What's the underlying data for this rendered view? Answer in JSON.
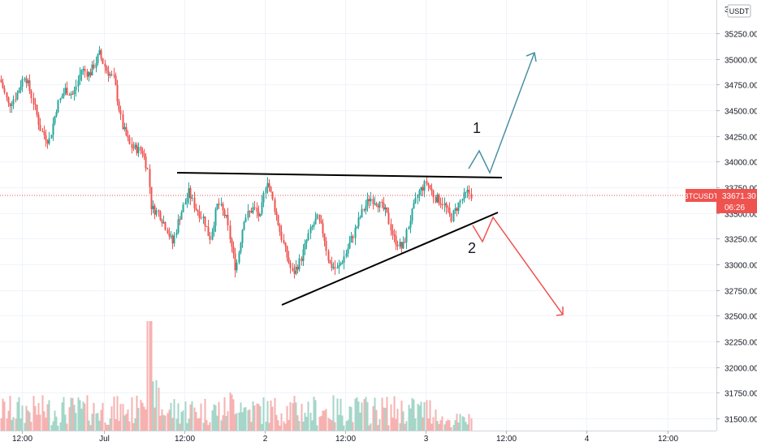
{
  "chart_data": {
    "type": "candlestick",
    "symbol": "BTCUSDT",
    "quote_currency": "USDT",
    "last_price": "33671.30",
    "countdown": "06:26",
    "y_axis": {
      "ticks": [
        31500,
        31750,
        32000,
        32250,
        32500,
        32750,
        33000,
        33250,
        33500,
        33750,
        34000,
        34250,
        34500,
        34750,
        35000,
        35250
      ],
      "tick_labels": [
        "31500.00",
        "31750.00",
        "32000.00",
        "32250.00",
        "32500.00",
        "32750.00",
        "33000.00",
        "33250.00",
        "33500.00",
        "33750.00",
        "34000.00",
        "34250.00",
        "34500.00",
        "34750.00",
        "35000.00",
        "35250.00"
      ],
      "top_clipped_label": "3"
    },
    "x_axis": {
      "tick_labels": [
        "12:00",
        "Jul",
        "12:00",
        "2",
        "12:00",
        "3",
        "12:00",
        "4",
        "12:00"
      ]
    },
    "annotations": {
      "label_1": "1",
      "label_2": "2"
    },
    "colors": {
      "up": "#26a69a",
      "down": "#ef5350",
      "volume_up": "#a5d6c8",
      "volume_down": "#f6b2b0",
      "price_line": "#ef5350",
      "trendline": "#000000",
      "arrow_up": "#4a90a4",
      "arrow_down": "#ef5350"
    }
  }
}
